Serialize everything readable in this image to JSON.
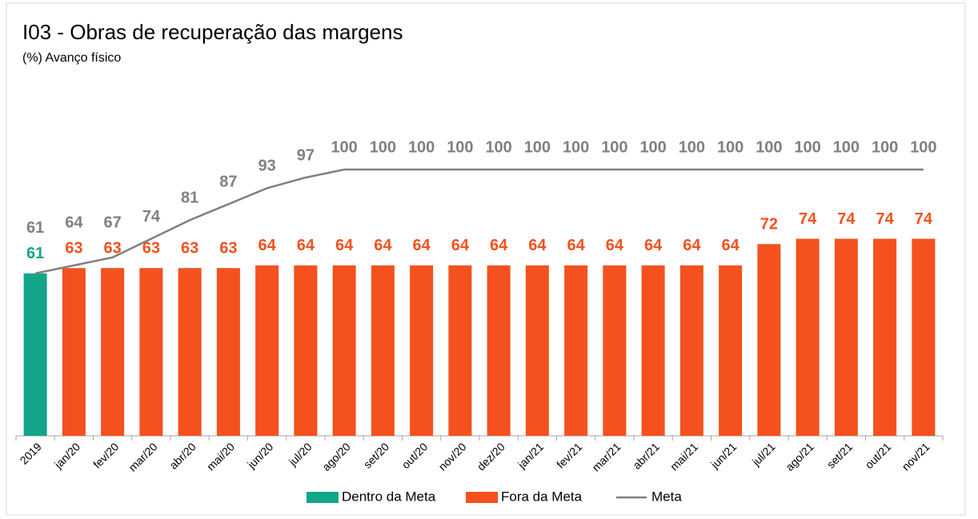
{
  "chart_data": {
    "type": "bar",
    "title": "I03 - Obras de recuperação das margens",
    "subtitle": "(%) Avanço físico",
    "categories": [
      "2019",
      "jan/20",
      "fev/20",
      "mar/20",
      "abr/20",
      "mai/20",
      "jun/20",
      "jul/20",
      "ago/20",
      "set/20",
      "out/20",
      "nov/20",
      "dez/20",
      "jan/21",
      "fev/21",
      "mar/21",
      "abr/21",
      "mai/21",
      "jun/21",
      "jul/21",
      "ago/21",
      "set/21",
      "out/21",
      "nov/21"
    ],
    "series": [
      {
        "name": "Dentro da Meta",
        "color": "#13a58a",
        "values": [
          61,
          null,
          null,
          null,
          null,
          null,
          null,
          null,
          null,
          null,
          null,
          null,
          null,
          null,
          null,
          null,
          null,
          null,
          null,
          null,
          null,
          null,
          null,
          null
        ]
      },
      {
        "name": "Fora da Meta",
        "color": "#f4511e",
        "values": [
          null,
          63,
          63,
          63,
          63,
          63,
          64,
          64,
          64,
          64,
          64,
          64,
          64,
          64,
          64,
          64,
          64,
          64,
          64,
          72,
          74,
          74,
          74,
          74
        ]
      },
      {
        "name": "Meta",
        "type": "line",
        "color": "#808080",
        "values": [
          61,
          64,
          67,
          74,
          81,
          87,
          93,
          97,
          100,
          100,
          100,
          100,
          100,
          100,
          100,
          100,
          100,
          100,
          100,
          100,
          100,
          100,
          100,
          100
        ]
      }
    ],
    "ylim": [
      0,
      100
    ]
  }
}
